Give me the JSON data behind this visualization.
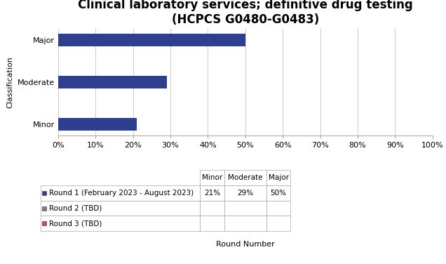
{
  "title": "Clinical laboratory services; definitive drug testing\n(HCPCS G0480-G0483)",
  "categories": [
    "Minor",
    "Moderate",
    "Major"
  ],
  "round1_values": [
    0.21,
    0.29,
    0.5
  ],
  "bar_color_round1": "#2E3F8F",
  "bar_color_round2": "#7F7F7F",
  "bar_color_round3": "#C0504D",
  "ylabel": "Classification",
  "xlabel": "Round Number",
  "xlim": [
    0,
    1.0
  ],
  "xticks": [
    0.0,
    0.1,
    0.2,
    0.3,
    0.4,
    0.5,
    0.6,
    0.7,
    0.8,
    0.9,
    1.0
  ],
  "xtick_labels": [
    "0%",
    "10%",
    "20%",
    "30%",
    "40%",
    "50%",
    "60%",
    "70%",
    "80%",
    "90%",
    "100%"
  ],
  "table_col_labels": [
    "Minor",
    "Moderate",
    "Major"
  ],
  "table_row_labels": [
    "Round 1 (February 2023 - August 2023)",
    "Round 2 (TBD)",
    "Round 3 (TBD)"
  ],
  "table_data": [
    [
      "21%",
      "29%",
      "50%"
    ],
    [
      "",
      "",
      ""
    ],
    [
      "",
      "",
      ""
    ]
  ],
  "legend_colors": [
    "#2E3F8F",
    "#7F7F7F",
    "#C0504D"
  ],
  "background_color": "#FFFFFF",
  "title_fontsize": 12,
  "axis_label_fontsize": 8,
  "tick_fontsize": 8,
  "table_fontsize": 7.5
}
